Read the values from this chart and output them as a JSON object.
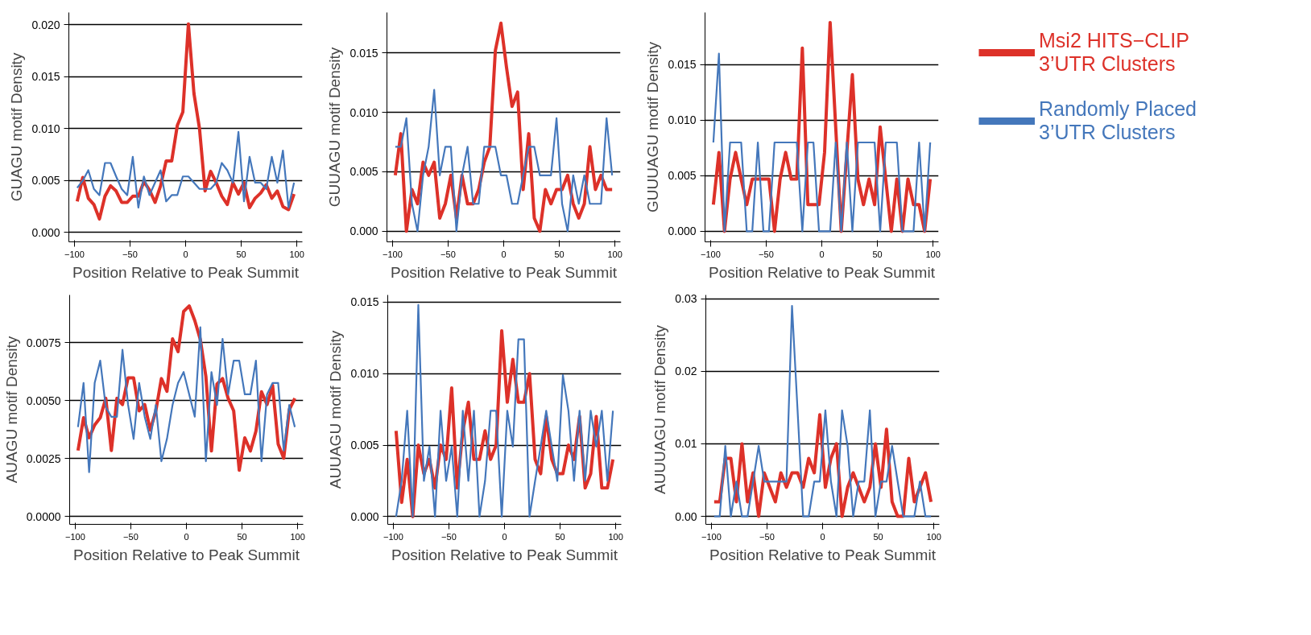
{
  "chart_data": [
    {
      "type": "line",
      "xlabel": "Position Relative to Peak Summit",
      "ylabel": "GUAGU motif Density",
      "xlim": [
        -105,
        105
      ],
      "xticks": [
        -100,
        -50,
        0,
        50,
        100
      ],
      "ylim": [
        -0.0009,
        0.0212
      ],
      "yticks": [
        {
          "value": 0,
          "label": "0.000"
        },
        0.005,
        {
          "value": 0.01,
          "label": "0.010"
        },
        0.015,
        {
          "value": 0.02,
          "label": "0.020"
        }
      ],
      "grid": "y",
      "legend": false,
      "x": [
        -97.5,
        -92.5,
        -87.5,
        -82.5,
        -77.5,
        -72.5,
        -67.5,
        -62.5,
        -57.5,
        -52.5,
        -47.5,
        -42.5,
        -37.5,
        -32.5,
        -27.5,
        -22.5,
        -17.5,
        -12.5,
        -7.5,
        -2.5,
        2.5,
        7.5,
        12.5,
        17.5,
        22.5,
        27.5,
        32.5,
        37.5,
        42.5,
        47.5,
        52.5,
        57.5,
        62.5,
        67.5,
        72.5,
        77.5,
        82.5,
        87.5,
        92.5,
        97.5
      ],
      "series": [
        {
          "color": "#dd3129",
          "values": [
            0.003,
            0.0053,
            0.0033,
            0.0027,
            0.0013,
            0.0035,
            0.0045,
            0.004,
            0.0029,
            0.0029,
            0.0035,
            0.0035,
            0.0049,
            0.0041,
            0.0029,
            0.0045,
            0.0069,
            0.0069,
            0.0103,
            0.0116,
            0.0201,
            0.0134,
            0.01,
            0.004,
            0.0059,
            0.0048,
            0.0035,
            0.0027,
            0.0048,
            0.0037,
            0.0048,
            0.0024,
            0.0033,
            0.0038,
            0.0046,
            0.0033,
            0.004,
            0.0025,
            0.0022,
            0.0037
          ]
        },
        {
          "color": "#4477bb",
          "values": [
            0.0043,
            0.005,
            0.006,
            0.0042,
            0.0036,
            0.0067,
            0.0067,
            0.0054,
            0.0042,
            0.0036,
            0.0073,
            0.0024,
            0.0054,
            0.0036,
            0.0048,
            0.006,
            0.003,
            0.0036,
            0.0036,
            0.0054,
            0.0054,
            0.0048,
            0.0042,
            0.0042,
            0.0042,
            0.0048,
            0.0067,
            0.006,
            0.0048,
            0.0097,
            0.003,
            0.0073,
            0.0048,
            0.0048,
            0.0042,
            0.0073,
            0.0048,
            0.0079,
            0.0024,
            0.0048
          ]
        }
      ]
    },
    {
      "type": "line",
      "xlabel": "Position Relative to Peak Summit",
      "ylabel": "GUUAGU motif Density",
      "xlim": [
        -105,
        105
      ],
      "xticks": [
        -100,
        -50,
        0,
        50,
        100
      ],
      "ylim": [
        -0.0009,
        0.0184
      ],
      "yticks": [
        {
          "value": 0,
          "label": "0.000"
        },
        0.005,
        {
          "value": 0.01,
          "label": "0.010"
        },
        0.015
      ],
      "grid": "y",
      "legend": false,
      "x": [
        -97.5,
        -92.5,
        -87.5,
        -82.5,
        -77.5,
        -72.5,
        -67.5,
        -62.5,
        -57.5,
        -52.5,
        -47.5,
        -42.5,
        -37.5,
        -32.5,
        -27.5,
        -22.5,
        -17.5,
        -12.5,
        -7.5,
        -2.5,
        2.5,
        7.5,
        12.5,
        17.5,
        22.5,
        27.5,
        32.5,
        37.5,
        42.5,
        47.5,
        52.5,
        57.5,
        62.5,
        67.5,
        72.5,
        77.5,
        82.5,
        87.5,
        92.5,
        97.5
      ],
      "series": [
        {
          "color": "#dd3129",
          "values": [
            0.0047,
            0.0082,
            0,
            0.0035,
            0.0023,
            0.0058,
            0.0047,
            0.0058,
            0.0011,
            0.0023,
            0.0047,
            0.0011,
            0.0047,
            0.0023,
            0.0023,
            0.0035,
            0.0058,
            0.0071,
            0.0152,
            0.0175,
            0.0138,
            0.0105,
            0.0117,
            0.0035,
            0.0082,
            0.0011,
            0,
            0.0035,
            0.0023,
            0.0035,
            0.0035,
            0.0047,
            0.0023,
            0.0011,
            0.0023,
            0.0071,
            0.0035,
            0.0047,
            0.0035,
            0.0035
          ]
        },
        {
          "color": "#4477bb",
          "values": [
            0.0071,
            0.0071,
            0.0095,
            0.0023,
            0,
            0.0047,
            0.0071,
            0.0119,
            0.0047,
            0.0071,
            0.0071,
            0,
            0.0047,
            0.0071,
            0.0023,
            0.0023,
            0.0071,
            0.0071,
            0.0071,
            0.0047,
            0.0047,
            0.0023,
            0.0023,
            0.0047,
            0.0071,
            0.0071,
            0.0047,
            0.0047,
            0.0047,
            0.0095,
            0.0023,
            0,
            0.0047,
            0.0023,
            0.0047,
            0.0023,
            0.0023,
            0.0023,
            0.0095,
            0.0047
          ]
        }
      ]
    },
    {
      "type": "line",
      "xlabel": "Position Relative to Peak Summit",
      "ylabel": "GUUUAGU motif Density",
      "xlim": [
        -105,
        105
      ],
      "xticks": [
        -100,
        -50,
        0,
        50,
        100
      ],
      "ylim": [
        -0.00095,
        0.0197
      ],
      "yticks": [
        {
          "value": 0,
          "label": "0.000"
        },
        0.005,
        {
          "value": 0.01,
          "label": "0.010"
        },
        0.015
      ],
      "grid": "y",
      "legend": "right",
      "x": [
        -97.5,
        -92.5,
        -87.5,
        -82.5,
        -77.5,
        -72.5,
        -67.5,
        -62.5,
        -57.5,
        -52.5,
        -47.5,
        -42.5,
        -37.5,
        -32.5,
        -27.5,
        -22.5,
        -17.5,
        -12.5,
        -7.5,
        -2.5,
        2.5,
        7.5,
        12.5,
        17.5,
        22.5,
        27.5,
        32.5,
        37.5,
        42.5,
        47.5,
        52.5,
        57.5,
        62.5,
        67.5,
        72.5,
        77.5,
        82.5,
        87.5,
        92.5,
        97.5
      ],
      "series": [
        {
          "name": "Msi2 HITS−CLIP 3’UTR Clusters",
          "color": "#dd3129",
          "values": [
            0.0024,
            0.0071,
            0,
            0.0047,
            0.0071,
            0.0047,
            0.0024,
            0.0047,
            0.0047,
            0.0047,
            0.0047,
            0,
            0.0047,
            0.0071,
            0.0047,
            0.0047,
            0.0165,
            0.0024,
            0.0024,
            0.0024,
            0.0071,
            0.0188,
            0.0094,
            0,
            0.0071,
            0.0141,
            0.0047,
            0.0024,
            0.0047,
            0.0024,
            0.0094,
            0.0047,
            0,
            0.0047,
            0,
            0.0047,
            0.0024,
            0.0024,
            0,
            0.0047
          ]
        },
        {
          "name": "Randomly Placed 3’UTR Clusters",
          "color": "#4477bb",
          "values": [
            0.008,
            0.016,
            0,
            0.008,
            0.008,
            0.008,
            0,
            0,
            0.008,
            0,
            0,
            0.008,
            0.008,
            0.008,
            0.008,
            0.008,
            0,
            0.008,
            0.008,
            0,
            0,
            0,
            0.008,
            0,
            0.008,
            0,
            0.008,
            0.008,
            0.008,
            0.008,
            0,
            0.008,
            0.008,
            0.008,
            0,
            0,
            0,
            0.008,
            0,
            0.008
          ]
        }
      ]
    },
    {
      "type": "line",
      "xlabel": "Position Relative to Peak Summit",
      "ylabel": "AUAGU motif Density",
      "xlim": [
        -105,
        105
      ],
      "xticks": [
        -100,
        -50,
        0,
        50,
        100
      ],
      "ylim": [
        -0.00033,
        0.00955
      ],
      "yticks": [
        {
          "value": 0,
          "label": "0.0000"
        },
        {
          "value": 0.0025,
          "label": "0.0025"
        },
        {
          "value": 0.005,
          "label": "0.0050"
        },
        {
          "value": 0.0075,
          "label": "0.0075"
        }
      ],
      "grid": "y",
      "legend": false,
      "x": [
        -97.5,
        -92.5,
        -87.5,
        -82.5,
        -77.5,
        -72.5,
        -67.5,
        -62.5,
        -57.5,
        -52.5,
        -47.5,
        -42.5,
        -37.5,
        -32.5,
        -27.5,
        -22.5,
        -17.5,
        -12.5,
        -7.5,
        -2.5,
        2.5,
        7.5,
        12.5,
        17.5,
        22.5,
        27.5,
        32.5,
        37.5,
        42.5,
        47.5,
        52.5,
        57.5,
        62.5,
        67.5,
        72.5,
        77.5,
        82.5,
        87.5,
        92.5,
        97.5
      ],
      "series": [
        {
          "color": "#dd3129",
          "values": [
            0.00285,
            0.00426,
            0.0034,
            0.00395,
            0.00426,
            0.0051,
            0.00285,
            0.0051,
            0.00483,
            0.00598,
            0.00598,
            0.00456,
            0.00483,
            0.00373,
            0.00456,
            0.00595,
            0.0054,
            0.00766,
            0.00711,
            0.00884,
            0.00908,
            0.00845,
            0.00763,
            0.00604,
            0.00283,
            0.00571,
            0.00595,
            0.0051,
            0.00456,
            0.002,
            0.0034,
            0.00283,
            0.00368,
            0.00538,
            0.00483,
            0.00565,
            0.00313,
            0.00252,
            0.00461,
            0.0051
          ]
        },
        {
          "color": "#4477bb",
          "values": [
            0.00386,
            0.00576,
            0.00192,
            0.00576,
            0.00672,
            0.00472,
            0.0043,
            0.0043,
            0.00719,
            0.00483,
            0.00335,
            0.00576,
            0.0043,
            0.00335,
            0.00481,
            0.00239,
            0.00335,
            0.00481,
            0.00576,
            0.00623,
            0.00527,
            0.00431,
            0.00816,
            0.00239,
            0.00623,
            0.00481,
            0.00766,
            0.00527,
            0.00672,
            0.00672,
            0.00527,
            0.00527,
            0.00672,
            0.00239,
            0.00527,
            0.00576,
            0.00576,
            0.00285,
            0.00481,
            0.00386
          ]
        }
      ]
    },
    {
      "type": "line",
      "xlabel": "Position Relative to Peak Summit",
      "ylabel": "AUUAGU motif Density",
      "xlim": [
        -105,
        105
      ],
      "xticks": [
        -100,
        -50,
        0,
        50,
        100
      ],
      "ylim": [
        -0.00054,
        0.0155
      ],
      "yticks": [
        {
          "value": 0,
          "label": "0.000"
        },
        0.005,
        {
          "value": 0.01,
          "label": "0.010"
        },
        0.015
      ],
      "grid": "y",
      "legend": false,
      "x": [
        -97.5,
        -92.5,
        -87.5,
        -82.5,
        -77.5,
        -72.5,
        -67.5,
        -62.5,
        -57.5,
        -52.5,
        -47.5,
        -42.5,
        -37.5,
        -32.5,
        -27.5,
        -22.5,
        -17.5,
        -12.5,
        -7.5,
        -2.5,
        2.5,
        7.5,
        12.5,
        17.5,
        22.5,
        27.5,
        32.5,
        37.5,
        42.5,
        47.5,
        52.5,
        57.5,
        62.5,
        67.5,
        72.5,
        77.5,
        82.5,
        87.5,
        92.5,
        97.5
      ],
      "series": [
        {
          "color": "#dd3129",
          "values": [
            0.006,
            0.001,
            0.004,
            0,
            0.005,
            0.003,
            0.004,
            0.002,
            0.005,
            0.004,
            0.009,
            0.002,
            0.006,
            0.008,
            0.004,
            0.004,
            0.006,
            0.004,
            0.005,
            0.013,
            0.008,
            0.011,
            0.008,
            0.008,
            0.01,
            0.004,
            0.003,
            0.007,
            0.004,
            0.003,
            0.003,
            0.005,
            0.004,
            0.007,
            0.002,
            0.003,
            0.007,
            0.002,
            0.002,
            0.004
          ]
        },
        {
          "color": "#4477bb",
          "values": [
            0,
            0.0025,
            0.0074,
            0,
            0.0148,
            0.0025,
            0.0049,
            0,
            0.0074,
            0.0025,
            0.0049,
            0,
            0.0074,
            0.0025,
            0.0074,
            0,
            0.0025,
            0.0074,
            0.0074,
            0,
            0.0074,
            0.0049,
            0.0124,
            0.0124,
            0,
            0.0025,
            0.0049,
            0.0074,
            0.0049,
            0.0025,
            0.0099,
            0.0074,
            0.0025,
            0.0074,
            0.0025,
            0.0074,
            0.0049,
            0.0074,
            0.0025,
            0.0074
          ]
        }
      ]
    },
    {
      "type": "line",
      "xlabel": "Position Relative to Peak Summit",
      "ylabel": "AUUUAGU motif Density",
      "xlim": [
        -105,
        105
      ],
      "xticks": [
        -100,
        -50,
        0,
        50,
        100
      ],
      "ylim": [
        -0.0011,
        0.0305
      ],
      "yticks": [
        {
          "value": 0,
          "label": "0.00"
        },
        0.01,
        0.02,
        0.03
      ],
      "grid": "y",
      "legend": false,
      "x": [
        -97.5,
        -92.5,
        -87.5,
        -82.5,
        -77.5,
        -72.5,
        -67.5,
        -62.5,
        -57.5,
        -52.5,
        -47.5,
        -42.5,
        -37.5,
        -32.5,
        -27.5,
        -22.5,
        -17.5,
        -12.5,
        -7.5,
        -2.5,
        2.5,
        7.5,
        12.5,
        17.5,
        22.5,
        27.5,
        32.5,
        37.5,
        42.5,
        47.5,
        52.5,
        57.5,
        62.5,
        67.5,
        72.5,
        77.5,
        82.5,
        87.5,
        92.5,
        97.5
      ],
      "series": [
        {
          "color": "#dd3129",
          "values": [
            0.002,
            0.002,
            0.008,
            0.008,
            0.002,
            0.01,
            0.002,
            0.006,
            0,
            0.006,
            0.004,
            0.002,
            0.006,
            0.004,
            0.006,
            0.006,
            0.004,
            0.008,
            0.006,
            0.014,
            0.004,
            0.008,
            0.01,
            0,
            0.004,
            0.006,
            0.004,
            0.002,
            0.004,
            0.01,
            0.004,
            0.012,
            0.002,
            0,
            0,
            0.008,
            0.002,
            0.004,
            0.006,
            0.002
          ]
        },
        {
          "color": "#4477bb",
          "values": [
            0,
            0,
            0.0097,
            0,
            0.0048,
            0,
            0,
            0.0048,
            0.0097,
            0.0048,
            0.0048,
            0.0048,
            0.0048,
            0.0048,
            0.029,
            0.0146,
            0,
            0,
            0.0048,
            0.0048,
            0.0146,
            0.0048,
            0,
            0.0146,
            0.0097,
            0,
            0.0048,
            0.0048,
            0.0146,
            0,
            0.0048,
            0.0048,
            0.0097,
            0.0048,
            0,
            0,
            0,
            0.0048,
            0,
            0
          ]
        }
      ]
    }
  ]
}
